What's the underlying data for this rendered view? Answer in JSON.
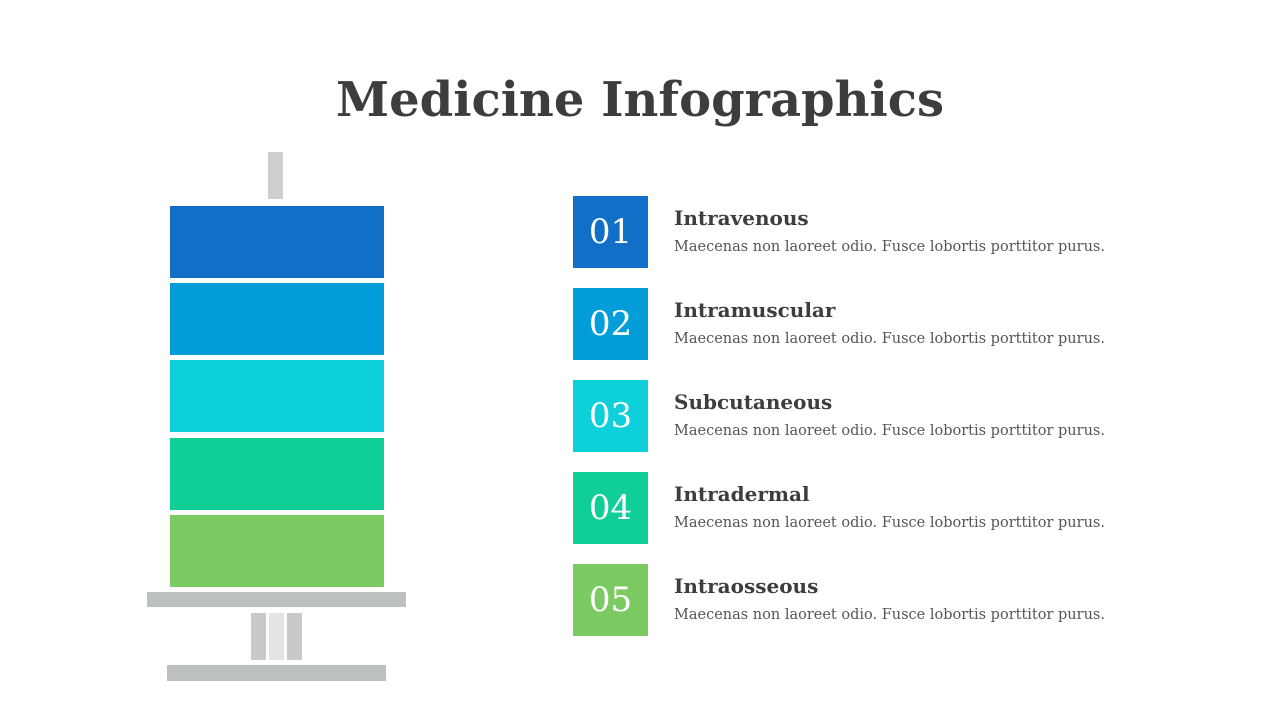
{
  "title": "Medicine Infographics",
  "colors": {
    "c1": "#126fc8",
    "c2": "#039ed9",
    "c3": "#0dd0da",
    "c4": "#10cf96",
    "c5": "#7ccb62",
    "gray": "#bcc0c1",
    "text": "#3d3d3f"
  },
  "items": [
    {
      "number": "01",
      "title": "Intravenous",
      "description": "Maecenas non laoreet odio. Fusce lobortis porttitor purus."
    },
    {
      "number": "02",
      "title": "Intramuscular",
      "description": "Maecenas non laoreet odio. Fusce lobortis porttitor purus."
    },
    {
      "number": "03",
      "title": "Subcutaneous",
      "description": "Maecenas non laoreet odio. Fusce lobortis porttitor purus."
    },
    {
      "number": "04",
      "title": "Intradermal",
      "description": "Maecenas non laoreet odio. Fusce lobortis porttitor purus."
    },
    {
      "number": "05",
      "title": "Intraosseous",
      "description": "Maecenas non laoreet odio. Fusce lobortis porttitor purus."
    }
  ]
}
